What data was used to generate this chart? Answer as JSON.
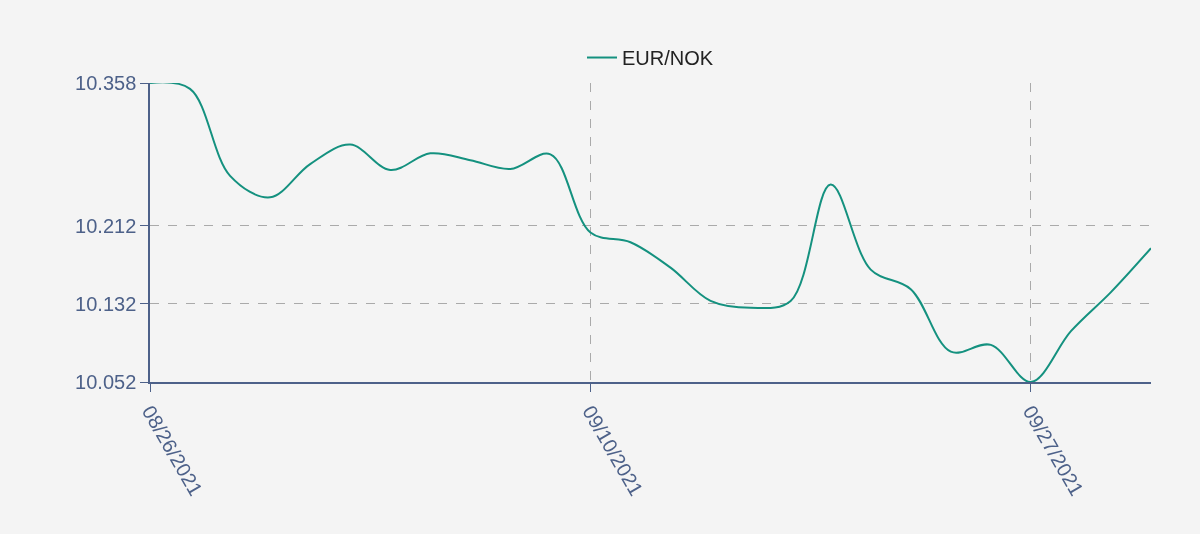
{
  "chart_data": {
    "type": "line",
    "categories": [
      "08/26/2021",
      null,
      null,
      null,
      null,
      null,
      null,
      null,
      null,
      null,
      null,
      "09/10/2021",
      null,
      null,
      null,
      null,
      null,
      null,
      null,
      null,
      null,
      null,
      "09/27/2021",
      null,
      null,
      null
    ],
    "series": [
      {
        "name": "EUR/NOK",
        "color": "#14917f",
        "values": [
          10.358,
          10.352,
          10.263,
          10.241,
          10.275,
          10.295,
          10.269,
          10.286,
          10.279,
          10.27,
          10.285,
          10.205,
          10.195,
          10.169,
          10.135,
          10.128,
          10.135,
          10.254,
          10.167,
          10.147,
          10.083,
          10.09,
          10.052,
          10.104,
          10.144,
          10.189
        ]
      }
    ],
    "ylim": [
      10.052,
      10.358
    ],
    "yticks": [
      10.052,
      10.132,
      10.212,
      10.358
    ],
    "grid": true,
    "legend": "top",
    "marker": "none",
    "line_style": "solid"
  }
}
